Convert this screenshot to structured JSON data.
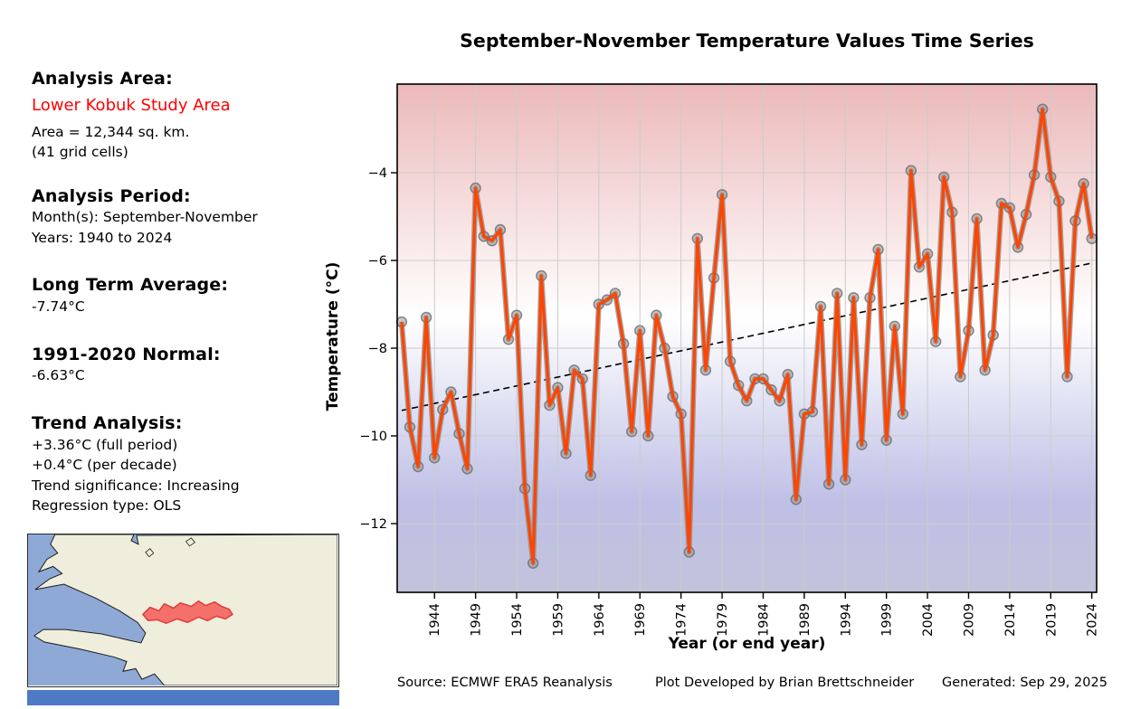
{
  "title": "September-November Temperature Values Time Series",
  "info_panel": {
    "analysis_area_heading": "Analysis Area:",
    "area_name": "Lower Kobuk Study Area",
    "area_size": "Area = 12,344 sq. km.",
    "grid_cells": "(41 grid cells)",
    "analysis_period_heading": "Analysis Period:",
    "months": "Month(s): September-November",
    "years": "Years: 1940 to 2024",
    "long_term_avg_heading": "Long Term Average:",
    "long_term_avg_value": "-7.74°C",
    "normal_heading": "1991-2020 Normal:",
    "normal_value": "-6.63°C",
    "trend_heading": "Trend Analysis:",
    "trend_full_period": "+3.36°C (full period)",
    "trend_per_decade": "+0.4°C (per decade)",
    "trend_significance": "Trend significance: Increasing",
    "regression_type": "Regression type: OLS"
  },
  "footer": {
    "source": "Source: ECMWF ERA5 Reanalysis",
    "credit": "Plot Developed by Brian Brettschneider",
    "generated": "Generated: Sep 29, 2025"
  },
  "chart_data": {
    "type": "line",
    "title": "September-November Temperature Values Time Series",
    "xlabel": "Year (or end year)",
    "ylabel": "Temperature (°C)",
    "grid": true,
    "legend": "none",
    "x_range": [
      1939.4,
      2024.6
    ],
    "y_range": [
      -13.57,
      -1.98
    ],
    "x_tick_years": [
      1944,
      1949,
      1954,
      1959,
      1964,
      1969,
      1974,
      1979,
      1984,
      1989,
      1994,
      1999,
      2004,
      2009,
      2014,
      2019,
      2024
    ],
    "x_tick_labels": [
      "1944",
      "1949",
      "1954",
      "1959",
      "1964",
      "1969",
      "1974",
      "1979",
      "1984",
      "1989",
      "1994",
      "1999",
      "2004",
      "2009",
      "2014",
      "2019",
      "2024"
    ],
    "y_tick_values": [
      -4,
      -6,
      -8,
      -10,
      -12
    ],
    "y_tick_labels": [
      "−4",
      "−6",
      "−8",
      "−10",
      "−12"
    ],
    "start_year": 1940,
    "end_year": 2024,
    "values": [
      -7.4,
      -9.8,
      -10.7,
      -7.3,
      -10.5,
      -9.4,
      -9.0,
      -9.95,
      -10.75,
      -4.35,
      -5.45,
      -5.55,
      -5.3,
      -7.8,
      -7.25,
      -11.2,
      -12.9,
      -6.35,
      -9.3,
      -8.9,
      -10.4,
      -8.5,
      -8.7,
      -10.9,
      -7.0,
      -6.9,
      -6.75,
      -7.9,
      -9.9,
      -7.6,
      -10.0,
      -7.25,
      -8.0,
      -9.1,
      -9.5,
      -12.65,
      -5.5,
      -8.5,
      -6.4,
      -4.5,
      -8.3,
      -8.85,
      -9.2,
      -8.7,
      -8.7,
      -8.95,
      -9.2,
      -8.6,
      -11.45,
      -9.5,
      -9.45,
      -7.05,
      -11.1,
      -6.75,
      -11.0,
      -6.85,
      -10.2,
      -6.85,
      -5.75,
      -10.1,
      -7.5,
      -9.5,
      -3.95,
      -6.15,
      -5.85,
      -7.85,
      -4.1,
      -4.9,
      -8.65,
      -7.6,
      -5.05,
      -8.5,
      -7.7,
      -4.7,
      -4.8,
      -5.7,
      -4.95,
      -4.05,
      -2.55,
      -4.1,
      -4.65,
      -8.65,
      -5.1,
      -4.25,
      -5.5
    ],
    "trend": {
      "type": "OLS",
      "style": "dashed",
      "start_year": 1940,
      "start_value": -9.42,
      "end_year": 2024,
      "end_value": -6.06
    },
    "colors": {
      "line": "#ff4500",
      "line_halo": "#8f8f8f",
      "marker_fill": "#9a9a9a",
      "marker_edge": "#6f6f6f",
      "trend_line": "#000000",
      "grid": "#cccccc",
      "spine": "#000000",
      "bg_top": "#ecb9ba",
      "bg_mid": "#ffffff",
      "bg_lower": "#bfc0e6",
      "bg_bottom": "#c2c3da"
    }
  },
  "map": {
    "water_color": "#8ea9d6",
    "land_color": "#efeddc",
    "coast_color": "#1a1a1a",
    "study_area_fill": "#f4635e",
    "study_area_edge": "#e03a38",
    "strip_color": "#4e79c5"
  }
}
